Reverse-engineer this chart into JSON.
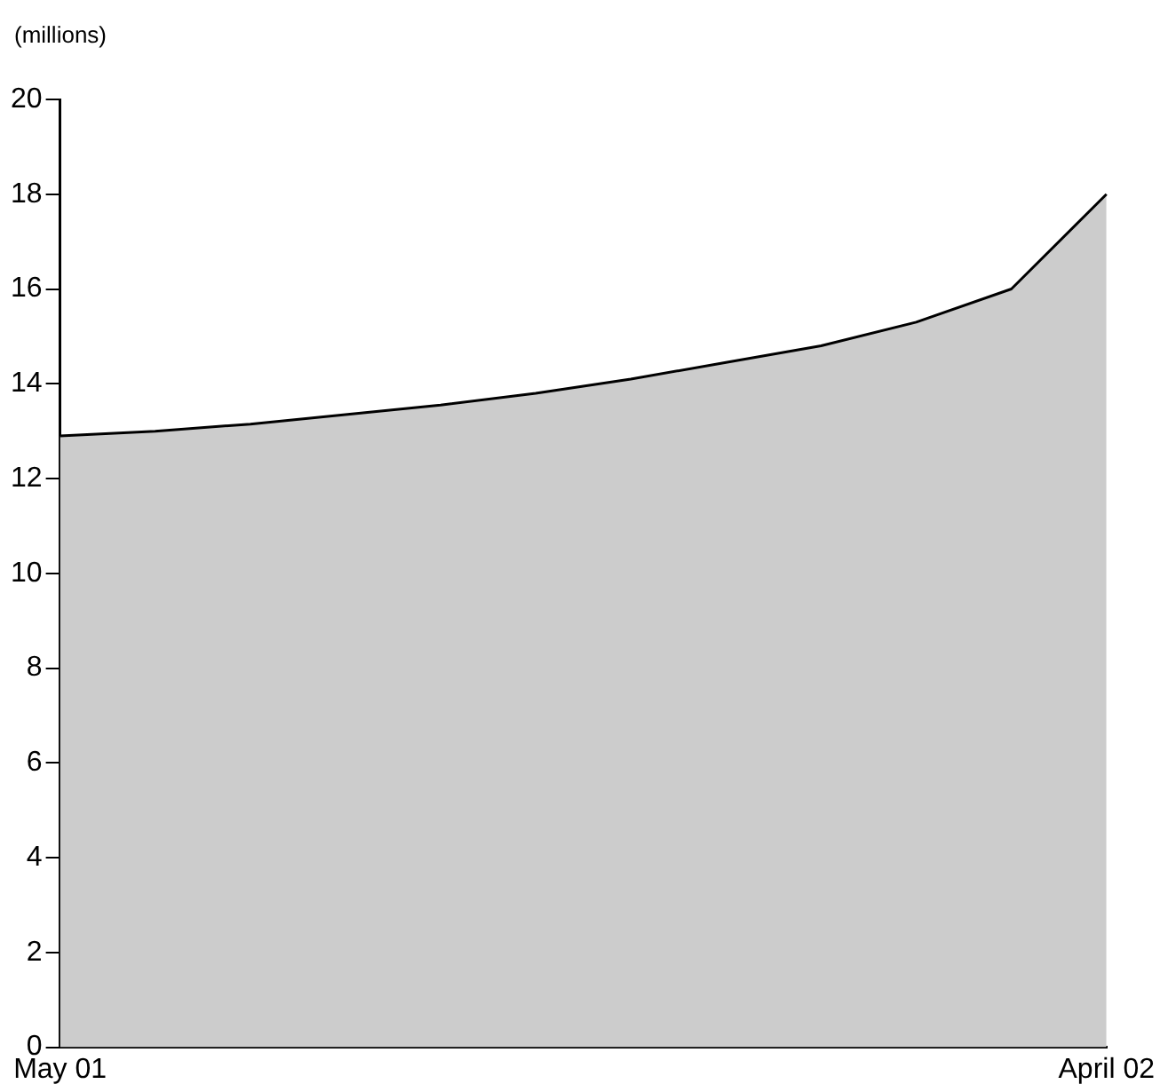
{
  "chart_data": {
    "type": "area",
    "subtitle": "(millions)",
    "categories": [
      "May 01",
      null,
      null,
      null,
      null,
      null,
      null,
      null,
      null,
      null,
      null,
      "April 02"
    ],
    "series": [
      {
        "color": "#cccccc",
        "values": [
          12.9,
          13.0,
          13.15,
          13.35,
          13.55,
          13.8,
          14.1,
          14.45,
          14.8,
          15.3,
          16.0,
          18.0
        ]
      }
    ],
    "ylim": [
      0,
      20
    ],
    "yticks": [
      0,
      2,
      4,
      6,
      8,
      10,
      12,
      14,
      16,
      18,
      20
    ],
    "grid": false,
    "legend": false,
    "marker": "none",
    "line_style": "solid"
  }
}
